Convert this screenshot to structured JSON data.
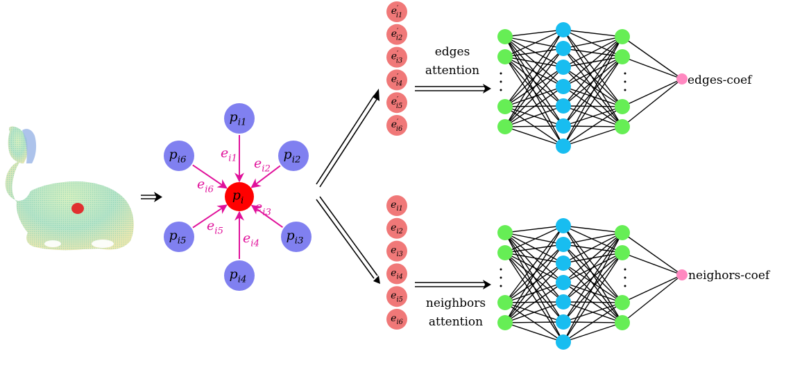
{
  "colors": {
    "neighbor_node": "#8080f0",
    "center_node": "#ff0000",
    "edge_arrow": "#e0109a",
    "edge_label": "#e0109a",
    "feature_circle": "#f07878",
    "nn_input": "#66ee55",
    "nn_hidden": "#18bdf0",
    "nn_output_edges": "#ff88c0",
    "nn_output_neighbors": "#ff88c0",
    "line": "#000000"
  },
  "graph": {
    "center": {
      "base": "p",
      "sub": "i"
    },
    "neighbors": [
      {
        "base": "p",
        "sub": "i1"
      },
      {
        "base": "p",
        "sub": "i2"
      },
      {
        "base": "p",
        "sub": "i3"
      },
      {
        "base": "p",
        "sub": "i4"
      },
      {
        "base": "p",
        "sub": "i5"
      },
      {
        "base": "p",
        "sub": "i6"
      }
    ],
    "edges": [
      {
        "base": "e",
        "sub": "i1"
      },
      {
        "base": "e",
        "sub": "i2"
      },
      {
        "base": "e",
        "sub": "i3"
      },
      {
        "base": "e",
        "sub": "i4"
      },
      {
        "base": "e",
        "sub": "i5"
      },
      {
        "base": "e",
        "sub": "i6"
      }
    ]
  },
  "edge_features_prime": [
    {
      "base": "e",
      "prime": "′",
      "sub": "i1"
    },
    {
      "base": "e",
      "prime": "′",
      "sub": "i2"
    },
    {
      "base": "e",
      "prime": "′",
      "sub": "i3"
    },
    {
      "base": "e",
      "prime": "′",
      "sub": "i4"
    },
    {
      "base": "e",
      "prime": "′",
      "sub": "i5"
    },
    {
      "base": "e",
      "prime": "′",
      "sub": "i6"
    }
  ],
  "edge_features": [
    {
      "base": "e",
      "sub": "i1"
    },
    {
      "base": "e",
      "sub": "i2"
    },
    {
      "base": "e",
      "sub": "i3"
    },
    {
      "base": "e",
      "sub": "i4"
    },
    {
      "base": "e",
      "sub": "i5"
    },
    {
      "base": "e",
      "sub": "i6"
    }
  ],
  "labels": {
    "edges_attention_line1": "edges",
    "edges_attention_line2": "attention",
    "neighbors_attention_line1": "neighbors",
    "neighbors_attention_line2": "attention",
    "edges_output": "edges-coef",
    "neighbors_output": "neighors-coef"
  }
}
